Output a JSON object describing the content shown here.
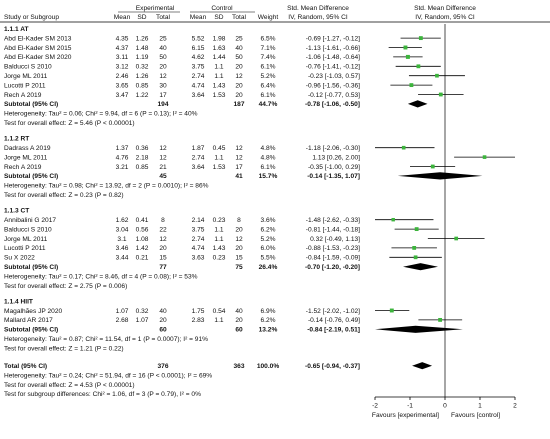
{
  "header": {
    "group_experimental": "Experimental",
    "group_control": "Control",
    "smd_title": "Std. Mean Difference",
    "smd_title_plot": "Std. Mean Difference",
    "method": "IV, Random, 95% CI",
    "method_plot": "IV, Random, 95% CI",
    "study": "Study or Subgroup",
    "mean_e": "Mean",
    "sd_e": "SD",
    "total_e": "Total",
    "mean_c": "Mean",
    "sd_c": "SD",
    "total_c": "Total",
    "weight": "Weight"
  },
  "axis": {
    "ticks": [
      "-2",
      "-1",
      "0",
      "1",
      "2"
    ],
    "favours_left": "Favours [experimental]",
    "favours_right": "Favours [control]"
  },
  "chart_data": {
    "type": "forest",
    "xlim": [
      -2,
      2
    ],
    "subgroups": [
      {
        "title": "1.1.1 AT",
        "studies": [
          {
            "name": "Abd El-Kader SM 2013",
            "mean_e": "4.35",
            "sd_e": "1.26",
            "n_e": "25",
            "mean_c": "5.52",
            "sd_c": "1.98",
            "n_c": "25",
            "weight": "6.5%",
            "ci": "-0.69 [-1.27, -0.12]",
            "est": -0.69,
            "lo": -1.27,
            "hi": -0.12
          },
          {
            "name": "Abd El-Kader SM 2015",
            "mean_e": "4.37",
            "sd_e": "1.48",
            "n_e": "40",
            "mean_c": "6.15",
            "sd_c": "1.63",
            "n_c": "40",
            "weight": "7.1%",
            "ci": "-1.13 [-1.61, -0.66]",
            "est": -1.13,
            "lo": -1.61,
            "hi": -0.66
          },
          {
            "name": "Abd El-Kader SM 2020",
            "mean_e": "3.11",
            "sd_e": "1.19",
            "n_e": "50",
            "mean_c": "4.62",
            "sd_c": "1.44",
            "n_c": "50",
            "weight": "7.4%",
            "ci": "-1.06 [-1.48, -0.64]",
            "est": -1.06,
            "lo": -1.48,
            "hi": -0.64
          },
          {
            "name": "Balducci S 2010",
            "mean_e": "3.12",
            "sd_e": "0.32",
            "n_e": "20",
            "mean_c": "3.75",
            "sd_c": "1.1",
            "n_c": "20",
            "weight": "6.1%",
            "ci": "-0.76 [-1.41, -0.12]",
            "est": -0.76,
            "lo": -1.41,
            "hi": -0.12
          },
          {
            "name": "Jorge ML 2011",
            "mean_e": "2.46",
            "sd_e": "1.26",
            "n_e": "12",
            "mean_c": "2.74",
            "sd_c": "1.1",
            "n_c": "12",
            "weight": "5.2%",
            "ci": "-0.23 [-1.03, 0.57]",
            "est": -0.23,
            "lo": -1.03,
            "hi": 0.57
          },
          {
            "name": "Lucotti P 2011",
            "mean_e": "3.65",
            "sd_e": "0.85",
            "n_e": "30",
            "mean_c": "4.74",
            "sd_c": "1.43",
            "n_c": "20",
            "weight": "6.4%",
            "ci": "-0.96 [-1.56, -0.36]",
            "est": -0.96,
            "lo": -1.56,
            "hi": -0.36
          },
          {
            "name": "Rech A 2019",
            "mean_e": "3.47",
            "sd_e": "1.22",
            "n_e": "17",
            "mean_c": "3.64",
            "sd_c": "1.53",
            "n_c": "20",
            "weight": "6.1%",
            "ci": "-0.12 [-0.77, 0.53]",
            "est": -0.12,
            "lo": -0.77,
            "hi": 0.53
          }
        ],
        "subtotal": {
          "label": "Subtotal (95% CI)",
          "n_e": "194",
          "n_c": "187",
          "weight": "44.7%",
          "ci": "-0.78 [-1.06, -0.50]",
          "est": -0.78,
          "lo": -1.06,
          "hi": -0.5
        },
        "heterogeneity": "Heterogeneity: Tau² = 0.06; Chi² = 9.94, df = 6 (P = 0.13); I² = 40%",
        "overall_test": "Test for overall effect: Z = 5.46 (P < 0.00001)"
      },
      {
        "title": "1.1.2 RT",
        "studies": [
          {
            "name": "Dadrass A 2019",
            "mean_e": "1.37",
            "sd_e": "0.36",
            "n_e": "12",
            "mean_c": "1.87",
            "sd_c": "0.45",
            "n_c": "12",
            "weight": "4.8%",
            "ci": "-1.18 [-2.06, -0.30]",
            "est": -1.18,
            "lo": -2.06,
            "hi": -0.3
          },
          {
            "name": "Jorge ML 2011",
            "mean_e": "4.76",
            "sd_e": "2.18",
            "n_e": "12",
            "mean_c": "2.74",
            "sd_c": "1.1",
            "n_c": "12",
            "weight": "4.8%",
            "ci": "1.13 [0.26, 2.00]",
            "est": 1.13,
            "lo": 0.26,
            "hi": 2.0
          },
          {
            "name": "Rech A 2019",
            "mean_e": "3.21",
            "sd_e": "0.85",
            "n_e": "21",
            "mean_c": "3.64",
            "sd_c": "1.53",
            "n_c": "17",
            "weight": "6.1%",
            "ci": "-0.35 [-1.00, 0.29]",
            "est": -0.35,
            "lo": -1.0,
            "hi": 0.29
          }
        ],
        "subtotal": {
          "label": "Subtotal (95% CI)",
          "n_e": "45",
          "n_c": "41",
          "weight": "15.7%",
          "ci": "-0.14 [-1.35, 1.07]",
          "est": -0.14,
          "lo": -1.35,
          "hi": 1.07
        },
        "heterogeneity": "Heterogeneity: Tau² = 0.98; Chi² = 13.92, df = 2 (P = 0.0010); I² = 86%",
        "overall_test": "Test for overall effect: Z = 0.23 (P = 0.82)"
      },
      {
        "title": "1.1.3 CT",
        "studies": [
          {
            "name": "Annibalini G 2017",
            "mean_e": "1.62",
            "sd_e": "0.41",
            "n_e": "8",
            "mean_c": "2.14",
            "sd_c": "0.23",
            "n_c": "8",
            "weight": "3.6%",
            "ci": "-1.48 [-2.62, -0.33]",
            "est": -1.48,
            "lo": -2.62,
            "hi": -0.33
          },
          {
            "name": "Balducci S 2010",
            "mean_e": "3.04",
            "sd_e": "0.56",
            "n_e": "22",
            "mean_c": "3.75",
            "sd_c": "1.1",
            "n_c": "20",
            "weight": "6.2%",
            "ci": "-0.81 [-1.44, -0.18]",
            "est": -0.81,
            "lo": -1.44,
            "hi": -0.18
          },
          {
            "name": "Jorge ML 2011",
            "mean_e": "3.1",
            "sd_e": "1.08",
            "n_e": "12",
            "mean_c": "2.74",
            "sd_c": "1.1",
            "n_c": "12",
            "weight": "5.2%",
            "ci": "0.32 [-0.49, 1.13]",
            "est": 0.32,
            "lo": -0.49,
            "hi": 1.13
          },
          {
            "name": "Lucotti P 2011",
            "mean_e": "3.46",
            "sd_e": "1.42",
            "n_e": "20",
            "mean_c": "4.74",
            "sd_c": "1.43",
            "n_c": "20",
            "weight": "6.0%",
            "ci": "-0.88 [-1.53, -0.23]",
            "est": -0.88,
            "lo": -1.53,
            "hi": -0.23
          },
          {
            "name": "Su X 2022",
            "mean_e": "3.44",
            "sd_e": "0.21",
            "n_e": "15",
            "mean_c": "3.63",
            "sd_c": "0.23",
            "n_c": "15",
            "weight": "5.5%",
            "ci": "-0.84 [-1.59, -0.09]",
            "est": -0.84,
            "lo": -1.59,
            "hi": -0.09
          }
        ],
        "subtotal": {
          "label": "Subtotal (95% CI)",
          "n_e": "77",
          "n_c": "75",
          "weight": "26.4%",
          "ci": "-0.70 [-1.20, -0.20]",
          "est": -0.7,
          "lo": -1.2,
          "hi": -0.2
        },
        "heterogeneity": "Heterogeneity: Tau² = 0.17; Chi² = 8.46, df = 4 (P = 0.08); I² = 53%",
        "overall_test": "Test for overall effect: Z = 2.75 (P = 0.006)"
      },
      {
        "title": "1.1.4 HIIT",
        "studies": [
          {
            "name": "Magalhães JP 2020",
            "mean_e": "1.07",
            "sd_e": "0.32",
            "n_e": "40",
            "mean_c": "1.75",
            "sd_c": "0.54",
            "n_c": "40",
            "weight": "6.9%",
            "ci": "-1.52 [-2.02, -1.02]",
            "est": -1.52,
            "lo": -2.02,
            "hi": -1.02
          },
          {
            "name": "Mallard AR 2017",
            "mean_e": "2.68",
            "sd_e": "1.07",
            "n_e": "20",
            "mean_c": "2.83",
            "sd_c": "1.1",
            "n_c": "20",
            "weight": "6.2%",
            "ci": "-0.14 [-0.76, 0.49]",
            "est": -0.14,
            "lo": -0.76,
            "hi": 0.49
          }
        ],
        "subtotal": {
          "label": "Subtotal (95% CI)",
          "n_e": "60",
          "n_c": "60",
          "weight": "13.2%",
          "ci": "-0.84 [-2.19, 0.51]",
          "est": -0.84,
          "lo": -2.19,
          "hi": 0.51
        },
        "heterogeneity": "Heterogeneity: Tau² = 0.87; Chi² = 11.54, df = 1 (P = 0.0007); I² = 91%",
        "overall_test": "Test for overall effect: Z = 1.21 (P = 0.22)"
      }
    ],
    "total": {
      "label": "Total (95% CI)",
      "n_e": "376",
      "n_c": "363",
      "weight": "100.0%",
      "ci": "-0.65 [-0.94, -0.37]",
      "est": -0.65,
      "lo": -0.94,
      "hi": -0.37
    },
    "footer": [
      "Heterogeneity: Tau² = 0.24; Chi² = 51.94, df = 16 (P < 0.0001); I² = 69%",
      "Test for overall effect: Z = 4.53 (P < 0.00001)",
      "Test for subgroup differences: Chi² = 1.06, df = 3 (P = 0.79), I² = 0%"
    ],
    "colors": {
      "square": "#3cb43c",
      "diamond": "#000000",
      "text": "#111111",
      "line": "#000000"
    }
  }
}
